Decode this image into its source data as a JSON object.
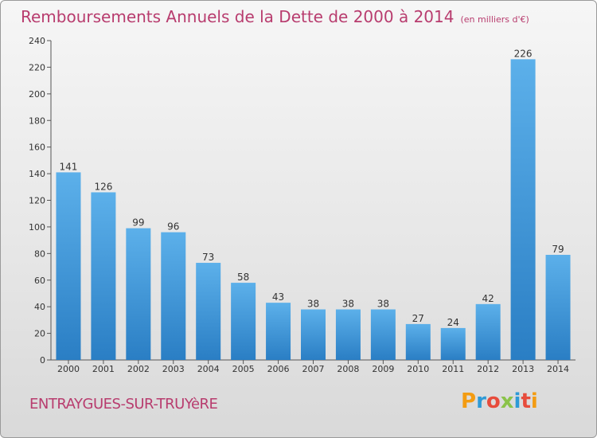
{
  "title": "Remboursements Annuels de la Dette de 2000 à 2014",
  "unit": "(en milliers d'€)",
  "commune": "ENTRAYGUES-SUR-TRUYèRE",
  "logo": "Proxiti",
  "colors": {
    "title": "#b83c6e",
    "bar_light": "#5cb0ea",
    "bar_dark": "#2a7ec4"
  },
  "chart_data": {
    "type": "bar",
    "title": "Remboursements Annuels de la Dette de 2000 à 2014",
    "xlabel": "",
    "ylabel": "",
    "categories": [
      "2000",
      "2001",
      "2002",
      "2003",
      "2004",
      "2005",
      "2006",
      "2007",
      "2008",
      "2009",
      "2010",
      "2011",
      "2012",
      "2013",
      "2014"
    ],
    "values": [
      141,
      126,
      99,
      96,
      73,
      58,
      43,
      38,
      38,
      38,
      27,
      24,
      42,
      226,
      79
    ],
    "ylim": [
      0,
      240
    ],
    "yticks": [
      0,
      20,
      40,
      60,
      80,
      100,
      120,
      140,
      160,
      180,
      200,
      220,
      240
    ],
    "grid": false,
    "data_labels": true
  }
}
